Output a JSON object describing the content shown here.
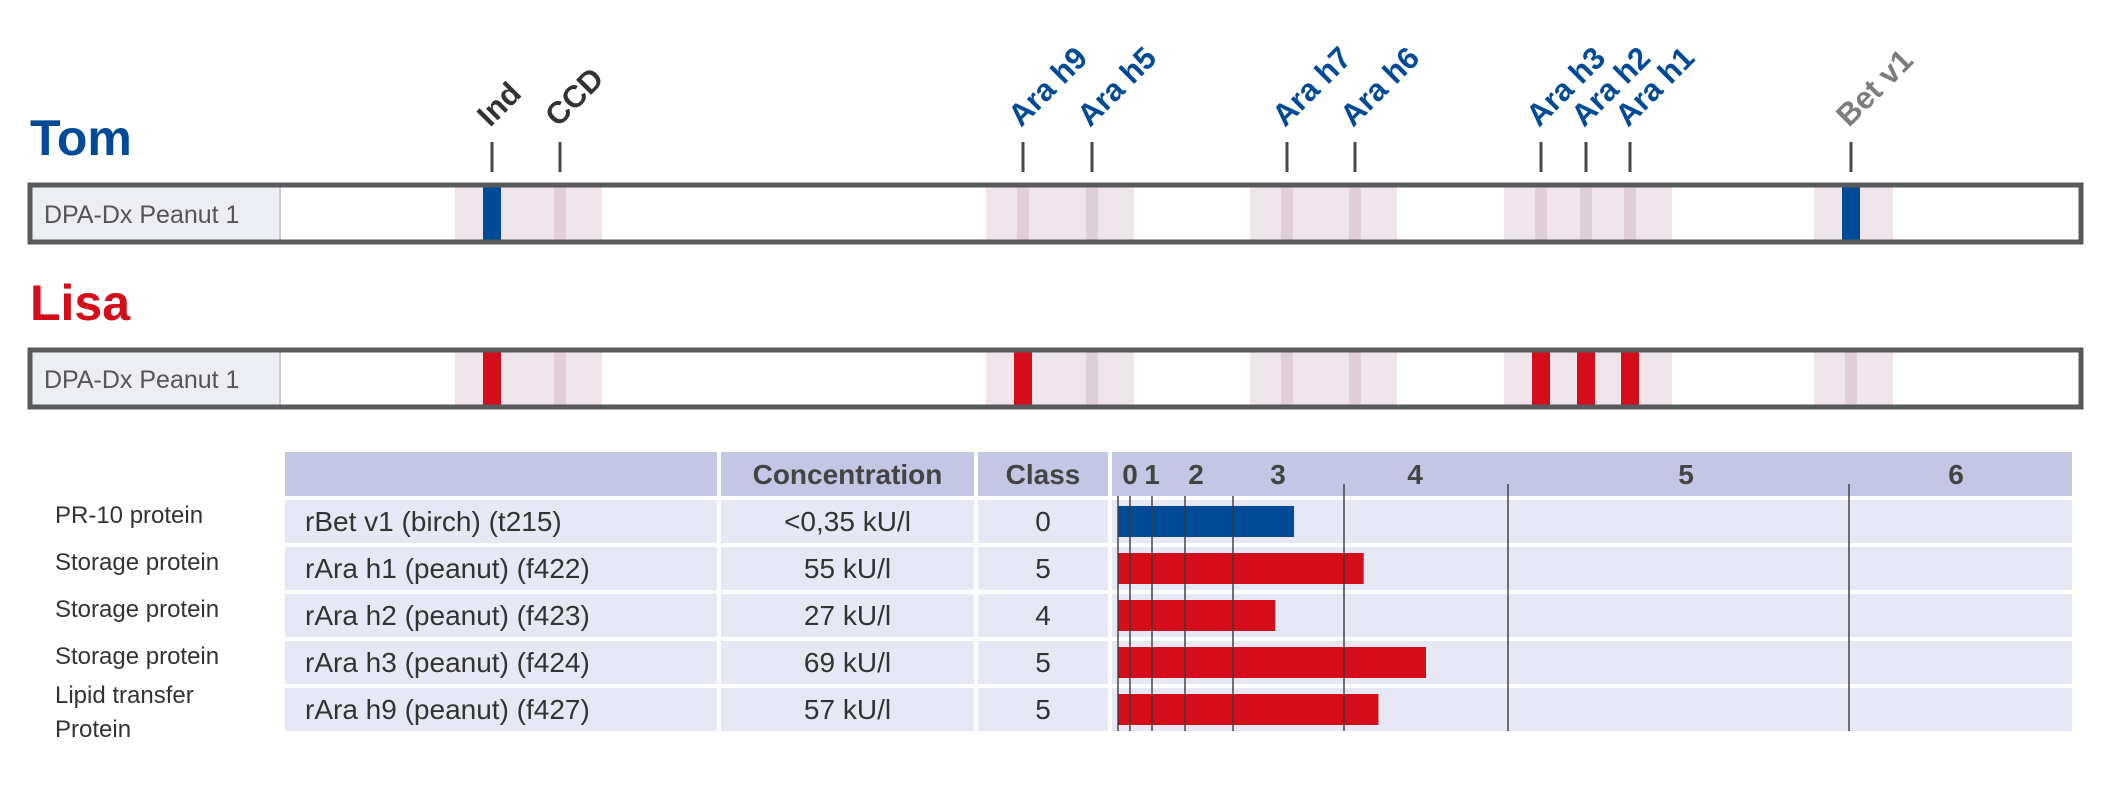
{
  "colors": {
    "blue": "#004a98",
    "red": "#d50c1a",
    "gray_label": "#7d7d7d",
    "band": "#f0e5ea",
    "band_line": "#e0cfda",
    "strip_border": "#58595b",
    "strip_label_bg": "#eceef3",
    "table_header_bg": "#c3c7e4",
    "table_row_bg": "#e6e8f5",
    "text_dark": "#333333"
  },
  "chart_data": [
    {
      "type": "line-blot",
      "markers": [
        {
          "name": "Ind",
          "color": "dark"
        },
        {
          "name": "CCD",
          "color": "dark"
        },
        {
          "name": "Ara h9",
          "color": "blue"
        },
        {
          "name": "Ara h5",
          "color": "blue"
        },
        {
          "name": "Ara h7",
          "color": "blue"
        },
        {
          "name": "Ara h6",
          "color": "blue"
        },
        {
          "name": "Ara h3",
          "color": "blue"
        },
        {
          "name": "Ara h2",
          "color": "blue"
        },
        {
          "name": "Ara h1",
          "color": "blue"
        },
        {
          "name": "Bet v1",
          "color": "gray"
        }
      ],
      "strips": [
        {
          "patient": "Tom",
          "patient_color": "blue",
          "label": "DPA-Dx Peanut 1",
          "band_color": "blue",
          "positive_bands": [
            "Ind",
            "Bet v1"
          ]
        },
        {
          "patient": "Lisa",
          "patient_color": "red",
          "label": "DPA-Dx Peanut 1",
          "band_color": "red",
          "positive_bands": [
            "Ind",
            "Ara h9",
            "Ara h3",
            "Ara h2",
            "Ara h1"
          ]
        }
      ]
    },
    {
      "type": "bar",
      "orientation": "horizontal",
      "headers": {
        "allergen": "",
        "concentration": "Concentration",
        "class": "Class"
      },
      "class_scale": {
        "tick_labels": [
          "0",
          "1",
          "2",
          "3",
          "4",
          "5",
          "6"
        ],
        "breaks_kU_l": [
          0.35,
          0.7,
          3.5,
          17.5,
          50,
          100
        ]
      },
      "rows": [
        {
          "group": "PR-10 protein",
          "allergen": "rBet v1 (birch) (t215)",
          "concentration": "<0,35 kU/l",
          "class": "0",
          "value_kU_l": 0.35,
          "bar_level": 3.55,
          "color": "blue"
        },
        {
          "group": "Storage protein",
          "allergen": "rAra h1 (peanut) (f422)",
          "concentration": "55 kU/l",
          "class": "5",
          "value_kU_l": 55,
          "bar_level": 4.12,
          "color": "red"
        },
        {
          "group": "Storage protein",
          "allergen": "rAra h2 (peanut) (f423)",
          "concentration": "27 kU/l",
          "class": "4",
          "value_kU_l": 27,
          "bar_level": 3.38,
          "color": "red"
        },
        {
          "group": "Storage protein",
          "allergen": "rAra h3 (peanut) (f424)",
          "concentration": "69 kU/l",
          "class": "5",
          "value_kU_l": 69,
          "bar_level": 4.5,
          "color": "red"
        },
        {
          "group": "Lipid transfer Protein",
          "allergen": "rAra h9 (peanut) (f427)",
          "concentration": "57 kU/l",
          "class": "5",
          "value_kU_l": 57,
          "bar_level": 4.21,
          "color": "red"
        }
      ]
    }
  ]
}
